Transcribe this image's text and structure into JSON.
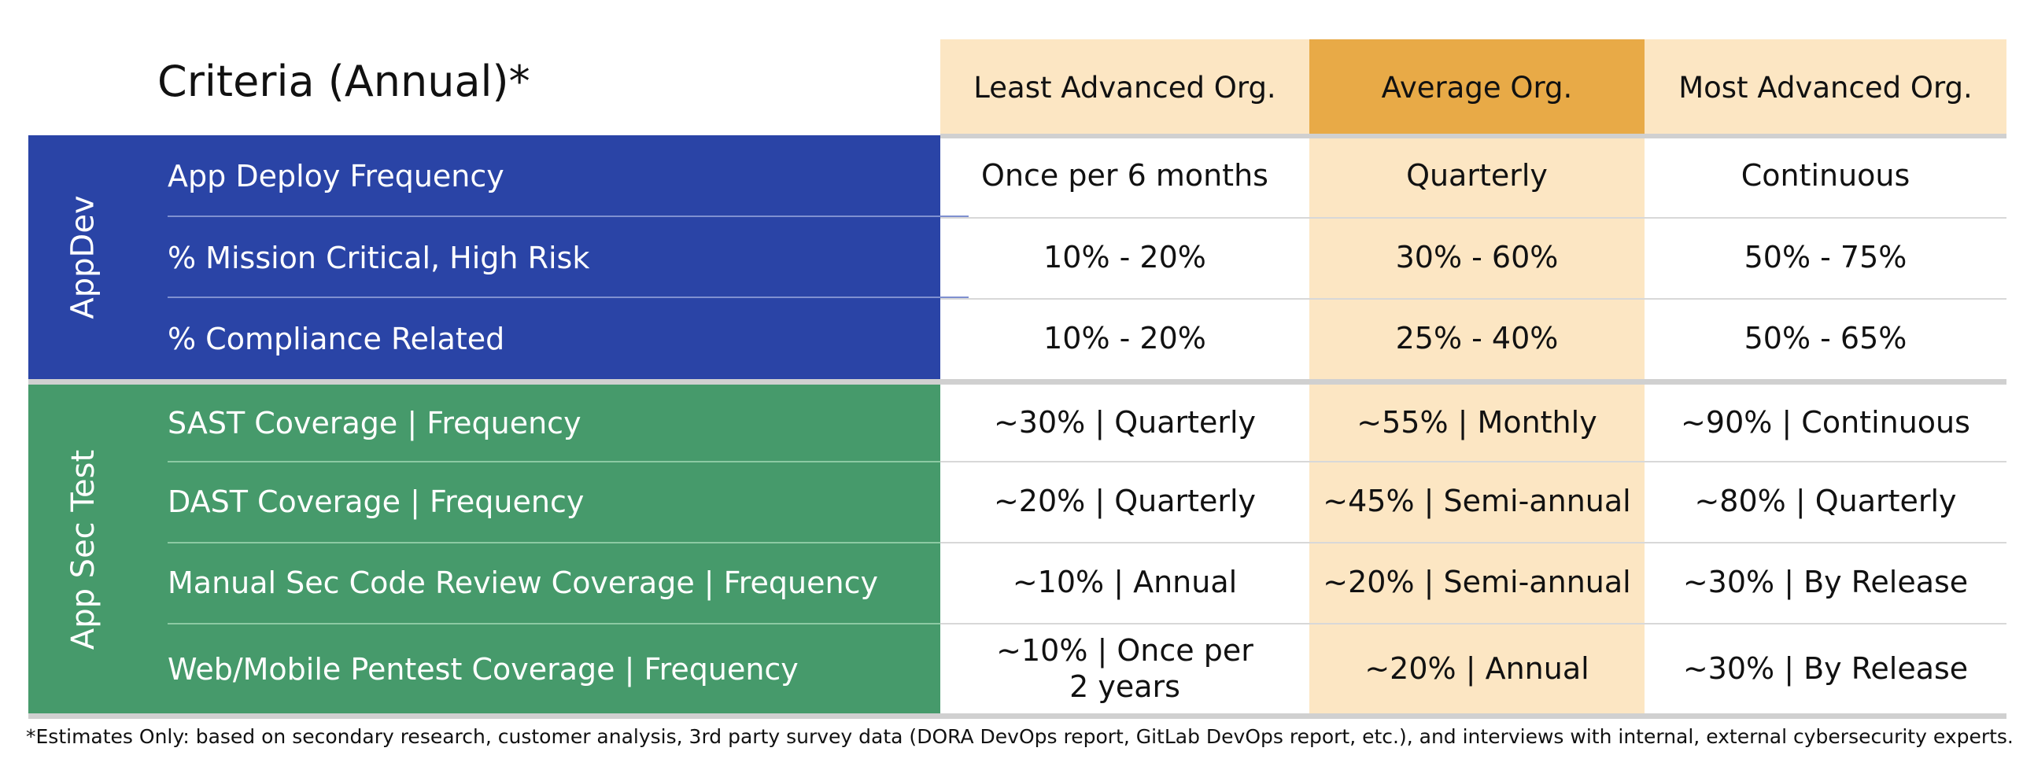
{
  "header": {
    "criteria_title": "Criteria (Annual)*",
    "columns": [
      "Least Advanced Org.",
      "Average Org.",
      "Most Advanced Org."
    ]
  },
  "groups": [
    {
      "label": "AppDev",
      "rows": [
        {
          "label": "App Deploy Frequency",
          "least": "Once per 6 months",
          "average": "Quarterly",
          "most": "Continuous"
        },
        {
          "label": "% Mission Critical, High Risk",
          "least": "10% - 20%",
          "average": "30% - 60%",
          "most": "50% - 75%"
        },
        {
          "label": "% Compliance Related",
          "least": "10% - 20%",
          "average": "25% - 40%",
          "most": "50% - 65%"
        }
      ]
    },
    {
      "label": "App Sec Test",
      "rows": [
        {
          "label": "SAST Coverage | Frequency",
          "least": "~30% | Quarterly",
          "average": "~55% | Monthly",
          "most": "~90% | Continuous"
        },
        {
          "label": "DAST Coverage | Frequency",
          "least": "~20% | Quarterly",
          "average": "~45% | Semi-annual",
          "most": "~80% | Quarterly"
        },
        {
          "label": "Manual Sec Code Review Coverage | Frequency",
          "least": "~10% | Annual",
          "average": "~20% | Semi-annual",
          "most": "~30% | By Release"
        },
        {
          "label": "Web/Mobile Pentest Coverage | Frequency",
          "least": "~10% | Once per",
          "least_line2": "2 years",
          "average": "~20% | Annual",
          "most": "~30% | By Release"
        }
      ]
    }
  ],
  "footnote": "*Estimates Only: based on secondary research, customer analysis, 3rd party survey data (DORA DevOps report, GitLab DevOps report, etc.), and interviews with internal, external cybersecurity experts.",
  "colors": {
    "appdev_blue": "#2a44a6",
    "appsec_green": "#469a6b",
    "column_light": "#fce6c3",
    "column_highlight": "#e8aa47"
  }
}
